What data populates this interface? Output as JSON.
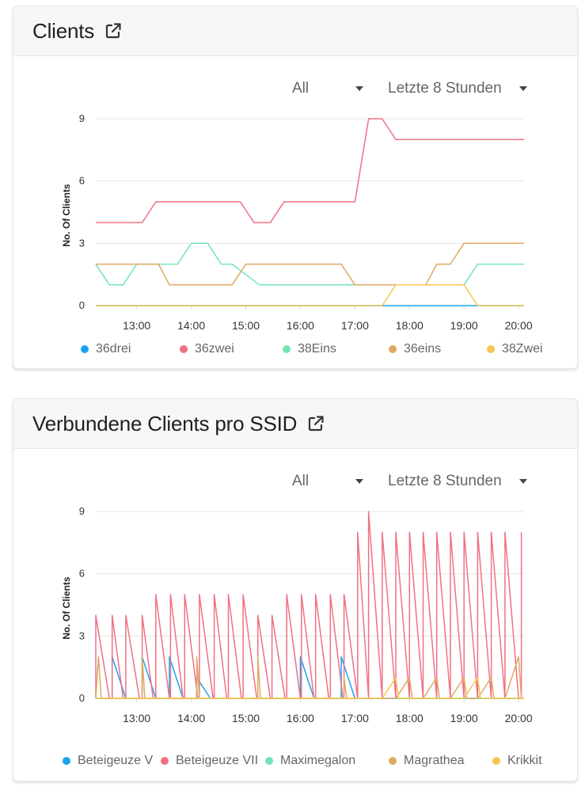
{
  "cards": [
    {
      "title": "Clients",
      "filter_value": "All",
      "range_value": "Letzte 8 Stunden",
      "chart_data": {
        "type": "line",
        "ylabel": "No.   Of   Clients",
        "xlim": [
          12.25,
          20.1
        ],
        "ylim": [
          0,
          9
        ],
        "yticks": [
          0,
          3,
          6,
          9
        ],
        "xticks": [
          13,
          14,
          15,
          16,
          17,
          18,
          19,
          20
        ],
        "xtick_labels": [
          "13:00",
          "14:00",
          "15:00",
          "16:00",
          "17:00",
          "18:00",
          "19:00",
          "20:00"
        ],
        "grid": "horizontal",
        "legend": "bottom",
        "series": [
          {
            "name": "36drei",
            "color": "#1aa3f0",
            "points": [
              [
                12.25,
                0
              ],
              [
                20.1,
                0
              ]
            ]
          },
          {
            "name": "36zwei",
            "color": "#f07084",
            "points": [
              [
                12.25,
                4
              ],
              [
                12.75,
                4
              ],
              [
                13.0,
                4
              ],
              [
                13.1,
                4
              ],
              [
                13.35,
                5
              ],
              [
                14.0,
                5
              ],
              [
                14.5,
                5
              ],
              [
                14.9,
                5
              ],
              [
                15.15,
                4
              ],
              [
                15.45,
                4
              ],
              [
                15.7,
                5
              ],
              [
                16.5,
                5
              ],
              [
                17.0,
                5
              ],
              [
                17.25,
                9
              ],
              [
                17.5,
                9
              ],
              [
                17.75,
                8
              ],
              [
                20.1,
                8
              ]
            ]
          },
          {
            "name": "38Eins",
            "color": "#74e4b4",
            "points": [
              [
                12.25,
                2
              ],
              [
                12.5,
                1
              ],
              [
                12.75,
                1
              ],
              [
                13.0,
                2
              ],
              [
                13.25,
                2
              ],
              [
                13.75,
                2
              ],
              [
                14.0,
                3
              ],
              [
                14.3,
                3
              ],
              [
                14.55,
                2
              ],
              [
                14.75,
                2
              ],
              [
                15.0,
                1.5
              ],
              [
                15.25,
                1
              ],
              [
                16.0,
                1
              ],
              [
                16.75,
                1
              ],
              [
                17.0,
                1
              ],
              [
                17.75,
                1
              ],
              [
                18.5,
                1
              ],
              [
                18.75,
                1
              ],
              [
                19.0,
                1
              ],
              [
                19.25,
                2
              ],
              [
                20.1,
                2
              ]
            ]
          },
          {
            "name": "36eins",
            "color": "#deaa61",
            "points": [
              [
                12.25,
                2
              ],
              [
                13.0,
                2
              ],
              [
                13.4,
                2
              ],
              [
                13.6,
                1
              ],
              [
                14.0,
                1
              ],
              [
                14.5,
                1
              ],
              [
                14.75,
                1
              ],
              [
                15.0,
                2
              ],
              [
                15.5,
                2
              ],
              [
                16.75,
                2
              ],
              [
                17.0,
                1
              ],
              [
                17.5,
                1
              ],
              [
                18.0,
                1
              ],
              [
                18.3,
                1
              ],
              [
                18.5,
                2
              ],
              [
                18.75,
                2
              ],
              [
                19.0,
                3
              ],
              [
                20.1,
                3
              ]
            ]
          },
          {
            "name": "38Zwei",
            "color": "#f9c452",
            "points": [
              [
                12.25,
                0
              ],
              [
                17.5,
                0
              ],
              [
                17.75,
                1
              ],
              [
                18.75,
                1
              ],
              [
                19.0,
                1
              ],
              [
                19.25,
                0
              ],
              [
                20.1,
                0
              ]
            ]
          }
        ]
      }
    },
    {
      "title": "Verbundene Clients pro SSID",
      "filter_value": "All",
      "range_value": "Letzte 8 Stunden",
      "chart_data": {
        "type": "line",
        "ylabel": "No.   Of   Clients",
        "xlim": [
          12.25,
          20.1
        ],
        "ylim": [
          0,
          9
        ],
        "yticks": [
          0,
          3,
          6,
          9
        ],
        "xticks": [
          13,
          14,
          15,
          16,
          17,
          18,
          19,
          20
        ],
        "xtick_labels": [
          "13:00",
          "14:00",
          "15:00",
          "16:00",
          "17:00",
          "18:00",
          "19:00",
          "20:00"
        ],
        "grid": "horizontal",
        "legend": "bottom",
        "series": [
          {
            "name": "Beteigeuze V",
            "color": "#1aa3f0",
            "points": [
              [
                12.25,
                0
              ],
              [
                12.55,
                0
              ],
              [
                12.55,
                2
              ],
              [
                12.8,
                0
              ],
              [
                13.1,
                0
              ],
              [
                13.1,
                2
              ],
              [
                13.35,
                0
              ],
              [
                13.6,
                0
              ],
              [
                13.6,
                2
              ],
              [
                13.85,
                0
              ],
              [
                14.1,
                0
              ],
              [
                14.1,
                1
              ],
              [
                14.35,
                0
              ],
              [
                16.0,
                0
              ],
              [
                16.0,
                2
              ],
              [
                16.25,
                0
              ],
              [
                16.75,
                0
              ],
              [
                16.75,
                2
              ],
              [
                17.0,
                0
              ],
              [
                20.1,
                0
              ]
            ]
          },
          {
            "name": "Beteigeuze VII",
            "color": "#f07084",
            "points": [
              [
                12.25,
                0
              ],
              [
                12.25,
                4
              ],
              [
                12.5,
                0
              ],
              [
                12.55,
                0
              ],
              [
                12.55,
                4
              ],
              [
                12.75,
                0
              ],
              [
                12.8,
                0
              ],
              [
                12.8,
                4
              ],
              [
                13.05,
                0
              ],
              [
                13.1,
                0
              ],
              [
                13.1,
                4
              ],
              [
                13.3,
                0
              ],
              [
                13.35,
                0
              ],
              [
                13.35,
                5
              ],
              [
                13.6,
                0
              ],
              [
                13.62,
                0
              ],
              [
                13.62,
                5
              ],
              [
                13.85,
                0
              ],
              [
                13.88,
                0
              ],
              [
                13.88,
                5
              ],
              [
                14.12,
                0
              ],
              [
                14.15,
                0
              ],
              [
                14.15,
                5
              ],
              [
                14.4,
                0
              ],
              [
                14.42,
                0
              ],
              [
                14.42,
                5
              ],
              [
                14.65,
                0
              ],
              [
                14.68,
                0
              ],
              [
                14.68,
                5
              ],
              [
                14.92,
                0
              ],
              [
                14.95,
                0
              ],
              [
                14.95,
                5
              ],
              [
                15.2,
                0
              ],
              [
                15.22,
                0
              ],
              [
                15.22,
                4
              ],
              [
                15.45,
                0
              ],
              [
                15.48,
                0
              ],
              [
                15.48,
                4
              ],
              [
                15.72,
                0
              ],
              [
                15.75,
                0
              ],
              [
                15.75,
                5
              ],
              [
                16.0,
                0
              ],
              [
                16.02,
                0
              ],
              [
                16.02,
                5
              ],
              [
                16.25,
                0
              ],
              [
                16.28,
                0
              ],
              [
                16.28,
                5
              ],
              [
                16.52,
                0
              ],
              [
                16.55,
                0
              ],
              [
                16.55,
                5
              ],
              [
                16.78,
                0
              ],
              [
                16.8,
                0
              ],
              [
                16.8,
                5
              ],
              [
                17.05,
                0
              ],
              [
                17.05,
                8
              ],
              [
                17.25,
                0
              ],
              [
                17.25,
                9
              ],
              [
                17.5,
                0
              ],
              [
                17.5,
                8
              ],
              [
                17.75,
                0
              ],
              [
                17.75,
                8
              ],
              [
                18.0,
                0
              ],
              [
                18.0,
                8
              ],
              [
                18.25,
                0
              ],
              [
                18.25,
                8
              ],
              [
                18.5,
                0
              ],
              [
                18.5,
                8
              ],
              [
                18.75,
                0
              ],
              [
                18.75,
                8
              ],
              [
                19.0,
                0
              ],
              [
                19.0,
                8
              ],
              [
                19.25,
                0
              ],
              [
                19.25,
                8
              ],
              [
                19.5,
                0
              ],
              [
                19.5,
                8
              ],
              [
                19.75,
                0
              ],
              [
                19.75,
                8
              ],
              [
                20.0,
                0
              ],
              [
                20.05,
                0
              ],
              [
                20.05,
                8
              ]
            ]
          },
          {
            "name": "Maximegalon",
            "color": "#74e4b4",
            "points": [
              [
                12.25,
                0
              ],
              [
                20.1,
                0
              ]
            ]
          },
          {
            "name": "Magrathea",
            "color": "#deaa61",
            "points": [
              [
                12.25,
                0
              ],
              [
                12.3,
                2
              ],
              [
                12.35,
                0
              ],
              [
                13.1,
                0
              ],
              [
                13.1,
                2
              ],
              [
                13.15,
                0
              ],
              [
                14.1,
                0
              ],
              [
                14.1,
                2
              ],
              [
                14.15,
                0
              ],
              [
                15.22,
                0
              ],
              [
                15.22,
                2
              ],
              [
                15.27,
                0
              ],
              [
                16.8,
                0
              ],
              [
                16.8,
                1
              ],
              [
                16.85,
                0
              ],
              [
                17.75,
                0
              ],
              [
                18.0,
                1
              ],
              [
                18.05,
                0
              ],
              [
                18.25,
                0
              ],
              [
                18.5,
                1
              ],
              [
                18.55,
                0
              ],
              [
                18.75,
                0
              ],
              [
                19.0,
                1
              ],
              [
                19.05,
                0
              ],
              [
                19.25,
                0
              ],
              [
                19.5,
                1
              ],
              [
                19.55,
                0
              ],
              [
                19.75,
                0
              ],
              [
                20.0,
                2
              ],
              [
                20.05,
                0
              ],
              [
                20.1,
                0
              ]
            ]
          },
          {
            "name": "Krikkit",
            "color": "#f9c452",
            "points": [
              [
                12.25,
                0
              ],
              [
                17.5,
                0
              ],
              [
                17.75,
                1
              ],
              [
                17.8,
                0
              ],
              [
                19.0,
                0
              ],
              [
                19.25,
                1
              ],
              [
                19.3,
                0
              ],
              [
                20.1,
                0
              ]
            ]
          }
        ]
      }
    }
  ]
}
